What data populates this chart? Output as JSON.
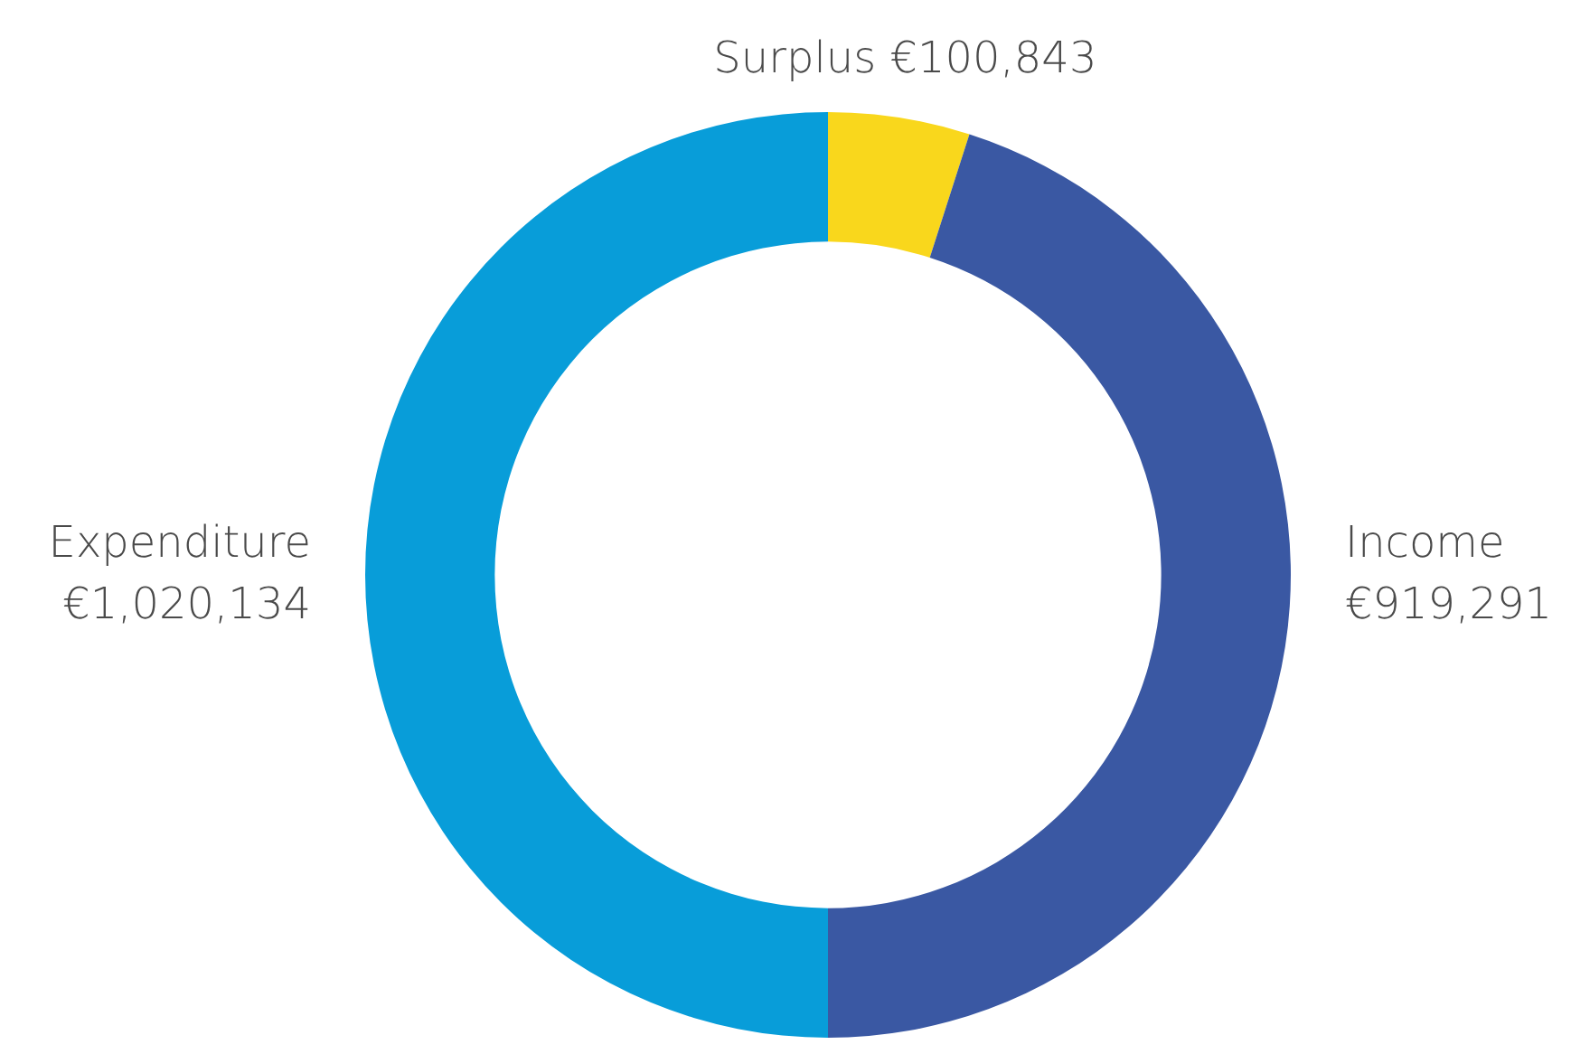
{
  "chart_data": {
    "type": "donut",
    "categories": [
      "Surplus",
      "Income",
      "Expenditure"
    ],
    "values": [
      100843,
      919291,
      1020134
    ],
    "value_labels": [
      "€100,843",
      "€919,291",
      "€1,020,134"
    ],
    "colors": [
      "#f9d71c",
      "#3a58a3",
      "#089dd9"
    ]
  }
}
